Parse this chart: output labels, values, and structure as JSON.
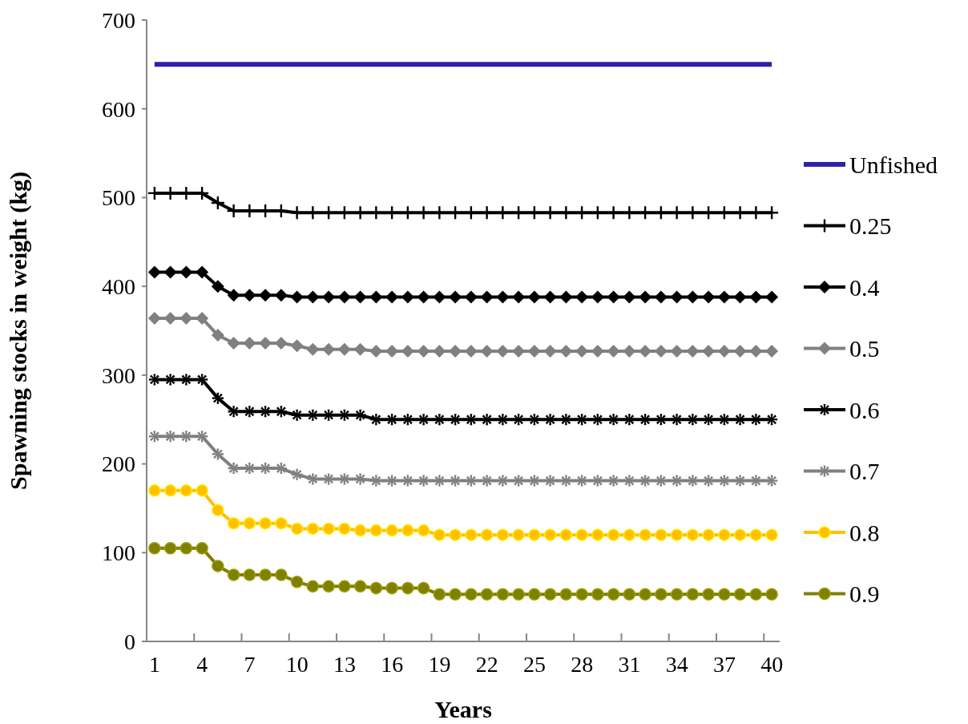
{
  "chart_data": {
    "type": "line",
    "xlabel": "Years",
    "ylabel": "Spawning stocks in weight (kg)",
    "categories": [
      "1",
      null,
      null,
      "4",
      null,
      null,
      "7",
      null,
      null,
      "10",
      null,
      null,
      "13",
      null,
      null,
      "16",
      null,
      null,
      "19",
      null,
      null,
      "22",
      null,
      null,
      "25",
      null,
      null,
      "28",
      null,
      null,
      "31",
      null,
      null,
      "34",
      null,
      null,
      "37",
      null,
      null,
      "40"
    ],
    "ylim": [
      0,
      700
    ],
    "yticks": [
      0,
      100,
      200,
      300,
      400,
      500,
      600,
      700
    ],
    "grid": false,
    "legend": "right",
    "line_style": "solid",
    "series": [
      {
        "name": "Unfished",
        "color": "#2e22a8",
        "marker": "none",
        "values": [
          650,
          650,
          650,
          650,
          650,
          650,
          650,
          650,
          650,
          650,
          650,
          650,
          650,
          650,
          650,
          650,
          650,
          650,
          650,
          650,
          650,
          650,
          650,
          650,
          650,
          650,
          650,
          650,
          650,
          650,
          650,
          650,
          650,
          650,
          650,
          650,
          650,
          650,
          650,
          650
        ]
      },
      {
        "name": "0.25",
        "color": "#000000",
        "marker": "cross",
        "values": [
          505,
          505,
          505,
          505,
          494,
          485,
          485,
          485,
          485,
          483,
          483,
          483,
          483,
          483,
          483,
          483,
          483,
          483,
          483,
          483,
          483,
          483,
          483,
          483,
          483,
          483,
          483,
          483,
          483,
          483,
          483,
          483,
          483,
          483,
          483,
          483,
          483,
          483,
          483,
          483
        ]
      },
      {
        "name": "0.4",
        "color": "#000000",
        "marker": "diamond",
        "values": [
          416,
          416,
          416,
          416,
          400,
          390,
          390,
          390,
          390,
          388,
          388,
          388,
          388,
          388,
          388,
          388,
          388,
          388,
          388,
          388,
          388,
          388,
          388,
          388,
          388,
          388,
          388,
          388,
          388,
          388,
          388,
          388,
          388,
          388,
          388,
          388,
          388,
          388,
          388,
          388
        ]
      },
      {
        "name": "0.5",
        "color": "#808080",
        "marker": "diamond",
        "values": [
          364,
          364,
          364,
          364,
          345,
          336,
          336,
          336,
          336,
          333,
          329,
          329,
          329,
          329,
          327,
          327,
          327,
          327,
          327,
          327,
          327,
          327,
          327,
          327,
          327,
          327,
          327,
          327,
          327,
          327,
          327,
          327,
          327,
          327,
          327,
          327,
          327,
          327,
          327,
          327
        ]
      },
      {
        "name": "0.6",
        "color": "#000000",
        "marker": "star",
        "values": [
          295,
          295,
          295,
          295,
          274,
          259,
          259,
          259,
          259,
          255,
          255,
          255,
          255,
          255,
          250,
          250,
          250,
          250,
          250,
          250,
          250,
          250,
          250,
          250,
          250,
          250,
          250,
          250,
          250,
          250,
          250,
          250,
          250,
          250,
          250,
          250,
          250,
          250,
          250,
          250
        ]
      },
      {
        "name": "0.7",
        "color": "#808080",
        "marker": "star",
        "values": [
          231,
          231,
          231,
          231,
          211,
          195,
          195,
          195,
          195,
          188,
          183,
          183,
          183,
          183,
          181,
          181,
          181,
          181,
          181,
          181,
          181,
          181,
          181,
          181,
          181,
          181,
          181,
          181,
          181,
          181,
          181,
          181,
          181,
          181,
          181,
          181,
          181,
          181,
          181,
          181
        ]
      },
      {
        "name": "0.8",
        "color": "#ffc000",
        "marker": "circle",
        "values": [
          170,
          170,
          170,
          170,
          148,
          133,
          133,
          133,
          133,
          127,
          127,
          127,
          127,
          125,
          125,
          125,
          125,
          125,
          120,
          120,
          120,
          120,
          120,
          120,
          120,
          120,
          120,
          120,
          120,
          120,
          120,
          120,
          120,
          120,
          120,
          120,
          120,
          120,
          120,
          120
        ]
      },
      {
        "name": "0.9",
        "color": "#7f7f00",
        "marker": "circle",
        "values": [
          105,
          105,
          105,
          105,
          85,
          75,
          75,
          75,
          75,
          67,
          62,
          62,
          62,
          62,
          60,
          60,
          60,
          60,
          53,
          53,
          53,
          53,
          53,
          53,
          53,
          53,
          53,
          53,
          53,
          53,
          53,
          53,
          53,
          53,
          53,
          53,
          53,
          53,
          53,
          53
        ]
      }
    ]
  }
}
